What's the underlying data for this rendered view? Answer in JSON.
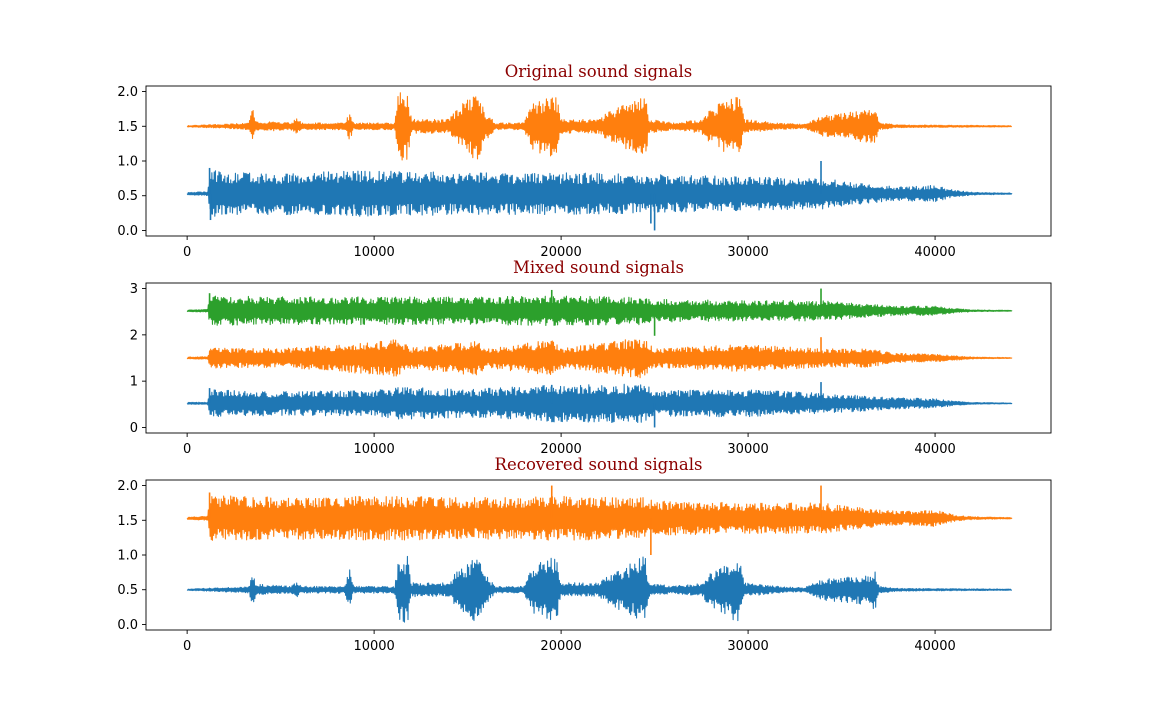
{
  "chart_data": [
    {
      "type": "line",
      "title": "Original sound signals",
      "title_color": "#8b0000",
      "xlim": [
        -2200,
        46200
      ],
      "ylim": [
        -0.08,
        2.08
      ],
      "xticks": [
        0,
        10000,
        20000,
        30000,
        40000
      ],
      "xtick_labels": [
        "0",
        "10000",
        "20000",
        "30000",
        "40000"
      ],
      "yticks": [
        0.0,
        0.5,
        1.0,
        1.5,
        2.0
      ],
      "ytick_labels": [
        "0.0",
        "0.5",
        "1.0",
        "1.5",
        "2.0"
      ],
      "grid": false,
      "series": [
        {
          "color": "#1f77b4",
          "baseline": 0.53,
          "x_start": 0,
          "x_end": 44100,
          "envelope": [
            [
              0,
              0.02
            ],
            [
              1100,
              0.03
            ],
            [
              1200,
              0.35
            ],
            [
              2000,
              0.3
            ],
            [
              5000,
              0.3
            ],
            [
              10000,
              0.33
            ],
            [
              15000,
              0.3
            ],
            [
              20000,
              0.3
            ],
            [
              25000,
              0.28
            ],
            [
              30000,
              0.24
            ],
            [
              34000,
              0.22
            ],
            [
              36000,
              0.15
            ],
            [
              38000,
              0.1
            ],
            [
              40000,
              0.12
            ],
            [
              41000,
              0.05
            ],
            [
              42000,
              0.02
            ],
            [
              44100,
              0.01
            ]
          ],
          "spikes": [
            [
              1200,
              0.9,
              0.12
            ],
            [
              1250,
              0.15,
              -0.12
            ],
            [
              25000,
              0.0,
              0.1
            ],
            [
              33900,
              1.0,
              0.4
            ],
            [
              24800,
              0.1,
              0.5
            ]
          ]
        },
        {
          "color": "#ff7f0e",
          "baseline": 1.5,
          "x_start": 0,
          "x_end": 44100,
          "envelope": [
            [
              0,
              0.01
            ],
            [
              2000,
              0.03
            ],
            [
              3300,
              0.05
            ],
            [
              3500,
              0.25
            ],
            [
              3700,
              0.08
            ],
            [
              4300,
              0.07
            ],
            [
              5500,
              0.05
            ],
            [
              5900,
              0.12
            ],
            [
              6100,
              0.05
            ],
            [
              8400,
              0.05
            ],
            [
              8700,
              0.2
            ],
            [
              8900,
              0.05
            ],
            [
              11100,
              0.05
            ],
            [
              11300,
              0.5
            ],
            [
              11800,
              0.5
            ],
            [
              12000,
              0.1
            ],
            [
              14000,
              0.1
            ],
            [
              14500,
              0.3
            ],
            [
              15500,
              0.5
            ],
            [
              16000,
              0.2
            ],
            [
              16500,
              0.05
            ],
            [
              18000,
              0.05
            ],
            [
              18500,
              0.35
            ],
            [
              19500,
              0.45
            ],
            [
              19800,
              0.4
            ],
            [
              20000,
              0.1
            ],
            [
              22000,
              0.1
            ],
            [
              22500,
              0.2
            ],
            [
              24500,
              0.5
            ],
            [
              24700,
              0.1
            ],
            [
              26000,
              0.05
            ],
            [
              27500,
              0.1
            ],
            [
              28000,
              0.25
            ],
            [
              29500,
              0.5
            ],
            [
              29800,
              0.1
            ],
            [
              31500,
              0.05
            ],
            [
              33000,
              0.03
            ],
            [
              34000,
              0.15
            ],
            [
              36500,
              0.25
            ],
            [
              36800,
              0.3
            ],
            [
              37000,
              0.05
            ],
            [
              38000,
              0.02
            ],
            [
              44100,
              0.01
            ]
          ],
          "spikes": []
        }
      ]
    },
    {
      "type": "line",
      "title": "Mixed sound signals",
      "title_color": "#8b0000",
      "xlim": [
        -2200,
        46200
      ],
      "ylim": [
        -0.12,
        3.12
      ],
      "xticks": [
        0,
        10000,
        20000,
        30000,
        40000
      ],
      "xtick_labels": [
        "0",
        "10000",
        "20000",
        "30000",
        "40000"
      ],
      "yticks": [
        0,
        1,
        2,
        3
      ],
      "ytick_labels": [
        "0",
        "1",
        "2",
        "3"
      ],
      "grid": false,
      "series": [
        {
          "color": "#1f77b4",
          "baseline": 0.52,
          "x_start": 0,
          "x_end": 44100,
          "envelope": [
            [
              0,
              0.02
            ],
            [
              1100,
              0.03
            ],
            [
              1200,
              0.3
            ],
            [
              5000,
              0.26
            ],
            [
              10000,
              0.28
            ],
            [
              11500,
              0.35
            ],
            [
              15000,
              0.3
            ],
            [
              19500,
              0.4
            ],
            [
              24500,
              0.42
            ],
            [
              25000,
              0.28
            ],
            [
              29500,
              0.3
            ],
            [
              34000,
              0.22
            ],
            [
              38000,
              0.12
            ],
            [
              40000,
              0.1
            ],
            [
              41000,
              0.05
            ],
            [
              42000,
              0.02
            ],
            [
              44100,
              0.01
            ]
          ],
          "spikes": [
            [
              1200,
              0.85,
              0.1
            ],
            [
              25000,
              0.0,
              0.1
            ],
            [
              19500,
              0.92,
              0.3
            ],
            [
              33900,
              0.98,
              0.4
            ]
          ]
        },
        {
          "color": "#ff7f0e",
          "baseline": 1.5,
          "x_start": 0,
          "x_end": 44100,
          "envelope": [
            [
              0,
              0.02
            ],
            [
              1100,
              0.03
            ],
            [
              1200,
              0.22
            ],
            [
              5000,
              0.2
            ],
            [
              11300,
              0.4
            ],
            [
              12000,
              0.22
            ],
            [
              15500,
              0.38
            ],
            [
              16000,
              0.2
            ],
            [
              19500,
              0.4
            ],
            [
              20000,
              0.22
            ],
            [
              24500,
              0.45
            ],
            [
              25000,
              0.2
            ],
            [
              29500,
              0.3
            ],
            [
              34000,
              0.2
            ],
            [
              36500,
              0.2
            ],
            [
              38000,
              0.1
            ],
            [
              40000,
              0.08
            ],
            [
              42000,
              0.02
            ],
            [
              44100,
              0.01
            ]
          ],
          "spikes": [
            [
              33900,
              1.95,
              0.4
            ]
          ]
        },
        {
          "color": "#2ca02c",
          "baseline": 2.52,
          "x_start": 0,
          "x_end": 44100,
          "envelope": [
            [
              0,
              0.02
            ],
            [
              1100,
              0.03
            ],
            [
              1200,
              0.33
            ],
            [
              5000,
              0.3
            ],
            [
              10000,
              0.3
            ],
            [
              15000,
              0.3
            ],
            [
              20000,
              0.32
            ],
            [
              24500,
              0.3
            ],
            [
              25000,
              0.25
            ],
            [
              30000,
              0.22
            ],
            [
              34000,
              0.22
            ],
            [
              36000,
              0.15
            ],
            [
              38000,
              0.1
            ],
            [
              40000,
              0.1
            ],
            [
              41000,
              0.05
            ],
            [
              42000,
              0.02
            ],
            [
              44100,
              0.01
            ]
          ],
          "spikes": [
            [
              1200,
              2.9,
              0.15
            ],
            [
              19500,
              2.97,
              0.3
            ],
            [
              25000,
              1.98,
              0.1
            ],
            [
              33900,
              3.0,
              0.4
            ]
          ]
        }
      ]
    },
    {
      "type": "line",
      "title": "Recovered sound signals",
      "title_color": "#8b0000",
      "xlim": [
        -2200,
        46200
      ],
      "ylim": [
        -0.08,
        2.08
      ],
      "xticks": [
        0,
        10000,
        20000,
        30000,
        40000
      ],
      "xtick_labels": [
        "0",
        "10000",
        "20000",
        "30000",
        "40000"
      ],
      "yticks": [
        0.0,
        0.5,
        1.0,
        1.5,
        2.0
      ],
      "ytick_labels": [
        "0.0",
        "0.5",
        "1.0",
        "1.5",
        "2.0"
      ],
      "grid": false,
      "series": [
        {
          "color": "#1f77b4",
          "baseline": 0.5,
          "x_start": 0,
          "x_end": 44100,
          "envelope": [
            [
              0,
              0.01
            ],
            [
              2000,
              0.03
            ],
            [
              3300,
              0.05
            ],
            [
              3500,
              0.22
            ],
            [
              3700,
              0.08
            ],
            [
              4300,
              0.07
            ],
            [
              5500,
              0.05
            ],
            [
              5900,
              0.12
            ],
            [
              6100,
              0.05
            ],
            [
              8400,
              0.05
            ],
            [
              8700,
              0.3
            ],
            [
              8900,
              0.05
            ],
            [
              11100,
              0.05
            ],
            [
              11300,
              0.48
            ],
            [
              11800,
              0.48
            ],
            [
              12000,
              0.1
            ],
            [
              14000,
              0.1
            ],
            [
              14500,
              0.3
            ],
            [
              15500,
              0.48
            ],
            [
              16000,
              0.2
            ],
            [
              16500,
              0.05
            ],
            [
              18000,
              0.05
            ],
            [
              18500,
              0.35
            ],
            [
              19500,
              0.5
            ],
            [
              19800,
              0.4
            ],
            [
              20000,
              0.1
            ],
            [
              22000,
              0.1
            ],
            [
              22500,
              0.2
            ],
            [
              24500,
              0.5
            ],
            [
              24700,
              0.1
            ],
            [
              26000,
              0.05
            ],
            [
              27500,
              0.1
            ],
            [
              28000,
              0.25
            ],
            [
              29500,
              0.48
            ],
            [
              29800,
              0.1
            ],
            [
              31500,
              0.05
            ],
            [
              33000,
              0.03
            ],
            [
              34000,
              0.15
            ],
            [
              36500,
              0.22
            ],
            [
              36800,
              0.3
            ],
            [
              37000,
              0.05
            ],
            [
              38000,
              0.02
            ],
            [
              44100,
              0.01
            ]
          ],
          "spikes": []
        },
        {
          "color": "#ff7f0e",
          "baseline": 1.53,
          "x_start": 0,
          "x_end": 44100,
          "envelope": [
            [
              0,
              0.02
            ],
            [
              1100,
              0.03
            ],
            [
              1200,
              0.33
            ],
            [
              5000,
              0.3
            ],
            [
              10000,
              0.32
            ],
            [
              15000,
              0.3
            ],
            [
              20000,
              0.32
            ],
            [
              24500,
              0.3
            ],
            [
              25000,
              0.25
            ],
            [
              30000,
              0.22
            ],
            [
              34000,
              0.22
            ],
            [
              36000,
              0.15
            ],
            [
              38000,
              0.1
            ],
            [
              40000,
              0.12
            ],
            [
              41000,
              0.05
            ],
            [
              42000,
              0.02
            ],
            [
              44100,
              0.01
            ]
          ],
          "spikes": [
            [
              1200,
              1.9,
              0.1
            ],
            [
              19500,
              2.0,
              0.3
            ],
            [
              24800,
              1.0,
              0.5
            ],
            [
              33900,
              2.0,
              0.4
            ]
          ]
        }
      ]
    }
  ]
}
